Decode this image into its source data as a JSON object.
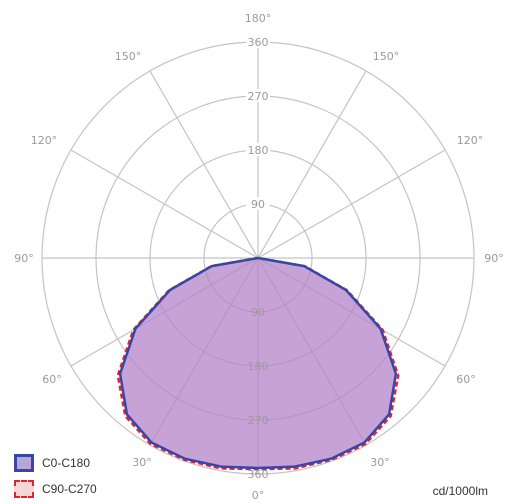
{
  "chart_data": {
    "type": "polar",
    "unit": "cd/1000lm",
    "angle_labels": [
      "0°",
      "30°",
      "60°",
      "90°",
      "120°",
      "150°",
      "180°",
      "150°",
      "120°",
      "90°",
      "60°",
      "30°"
    ],
    "ring_values": [
      90,
      180,
      270,
      360
    ],
    "ring_labels": [
      "90",
      "180",
      "270",
      "360",
      "90",
      "180",
      "270",
      "360"
    ],
    "r_max": 360,
    "series": [
      {
        "name": "C0-C180",
        "color": "#3a46a6",
        "fill": "#b483c9",
        "style": "solid",
        "angles": [
          0,
          10,
          20,
          30,
          40,
          50,
          60,
          70,
          80,
          90,
          -10,
          -20,
          -30,
          -40,
          -50,
          -60,
          -70,
          -80,
          -90
        ],
        "values": [
          350,
          353,
          356,
          355,
          340,
          300,
          236,
          156,
          78,
          0,
          353,
          356,
          355,
          340,
          300,
          236,
          156,
          78,
          0
        ]
      },
      {
        "name": "C90-C270",
        "color": "#e0252c",
        "style": "dashed",
        "angles": [
          0,
          10,
          20,
          30,
          40,
          50,
          60,
          70,
          80,
          90,
          -10,
          -20,
          -30,
          -40,
          -50,
          -60,
          -70,
          -80,
          -90
        ],
        "values": [
          352,
          356,
          358,
          358,
          344,
          305,
          240,
          158,
          79,
          0,
          356,
          358,
          358,
          344,
          305,
          240,
          158,
          79,
          0
        ]
      }
    ]
  }
}
